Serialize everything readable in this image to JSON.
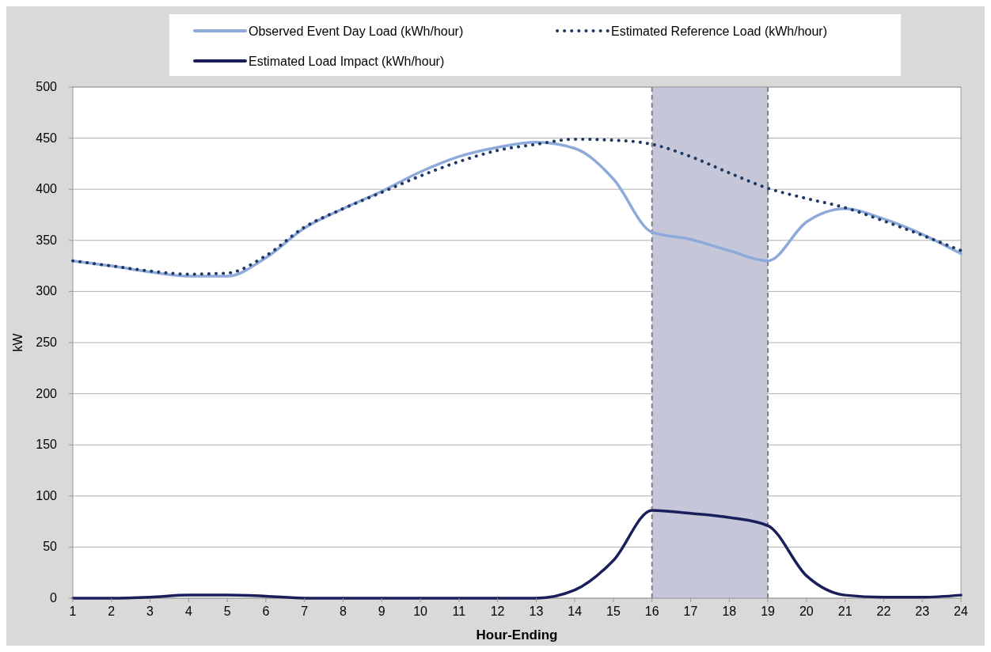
{
  "chart_data": {
    "type": "line",
    "xlabel": "Hour-Ending",
    "ylabel": "kW",
    "x": [
      1,
      2,
      3,
      4,
      5,
      6,
      7,
      8,
      9,
      10,
      11,
      12,
      13,
      14,
      15,
      16,
      17,
      18,
      19,
      20,
      21,
      22,
      23,
      24
    ],
    "xlim": [
      1,
      24
    ],
    "xticks": [
      1,
      2,
      3,
      4,
      5,
      6,
      7,
      8,
      9,
      10,
      11,
      12,
      13,
      14,
      15,
      16,
      17,
      18,
      19,
      20,
      21,
      22,
      23,
      24
    ],
    "ylim": [
      0,
      500
    ],
    "yticks": [
      0,
      50,
      100,
      150,
      200,
      250,
      300,
      350,
      400,
      450,
      500
    ],
    "grid": "y",
    "legend": "top",
    "bands": [
      {
        "axis": "x",
        "from": 16,
        "to": 19,
        "color": "#c5c7d9"
      }
    ],
    "ref_lines": [
      {
        "axis": "x",
        "value": 16,
        "color": "#808080",
        "line_style": "dashed"
      },
      {
        "axis": "x",
        "value": 19,
        "color": "#808080",
        "line_style": "dashed"
      }
    ],
    "series": [
      {
        "name": "Observed Event Day Load (kWh/hour)",
        "color": "#8eaadb",
        "line_style": "solid",
        "values": [
          330,
          325,
          319,
          315,
          315,
          333,
          362,
          381,
          398,
          417,
          432,
          441,
          446,
          440,
          410,
          358,
          351,
          340,
          330,
          368,
          381,
          371,
          356,
          337
        ]
      },
      {
        "name": "Estimated Reference Load (kWh/hour)",
        "color": "#1f3864",
        "line_style": "dotted",
        "values": [
          330,
          325,
          320,
          317,
          318,
          335,
          363,
          381,
          397,
          413,
          427,
          438,
          444,
          449,
          448,
          444,
          432,
          416,
          401,
          391,
          382,
          369,
          355,
          340
        ]
      },
      {
        "name": "Estimated Load Impact (kWh/hour)",
        "color": "#1a1f5c",
        "line_style": "solid",
        "values": [
          0,
          0,
          1,
          3,
          3,
          2,
          0,
          0,
          0,
          0,
          0,
          0,
          0,
          8,
          37,
          86,
          83,
          79,
          71,
          22,
          3,
          1,
          1,
          3
        ]
      }
    ]
  }
}
